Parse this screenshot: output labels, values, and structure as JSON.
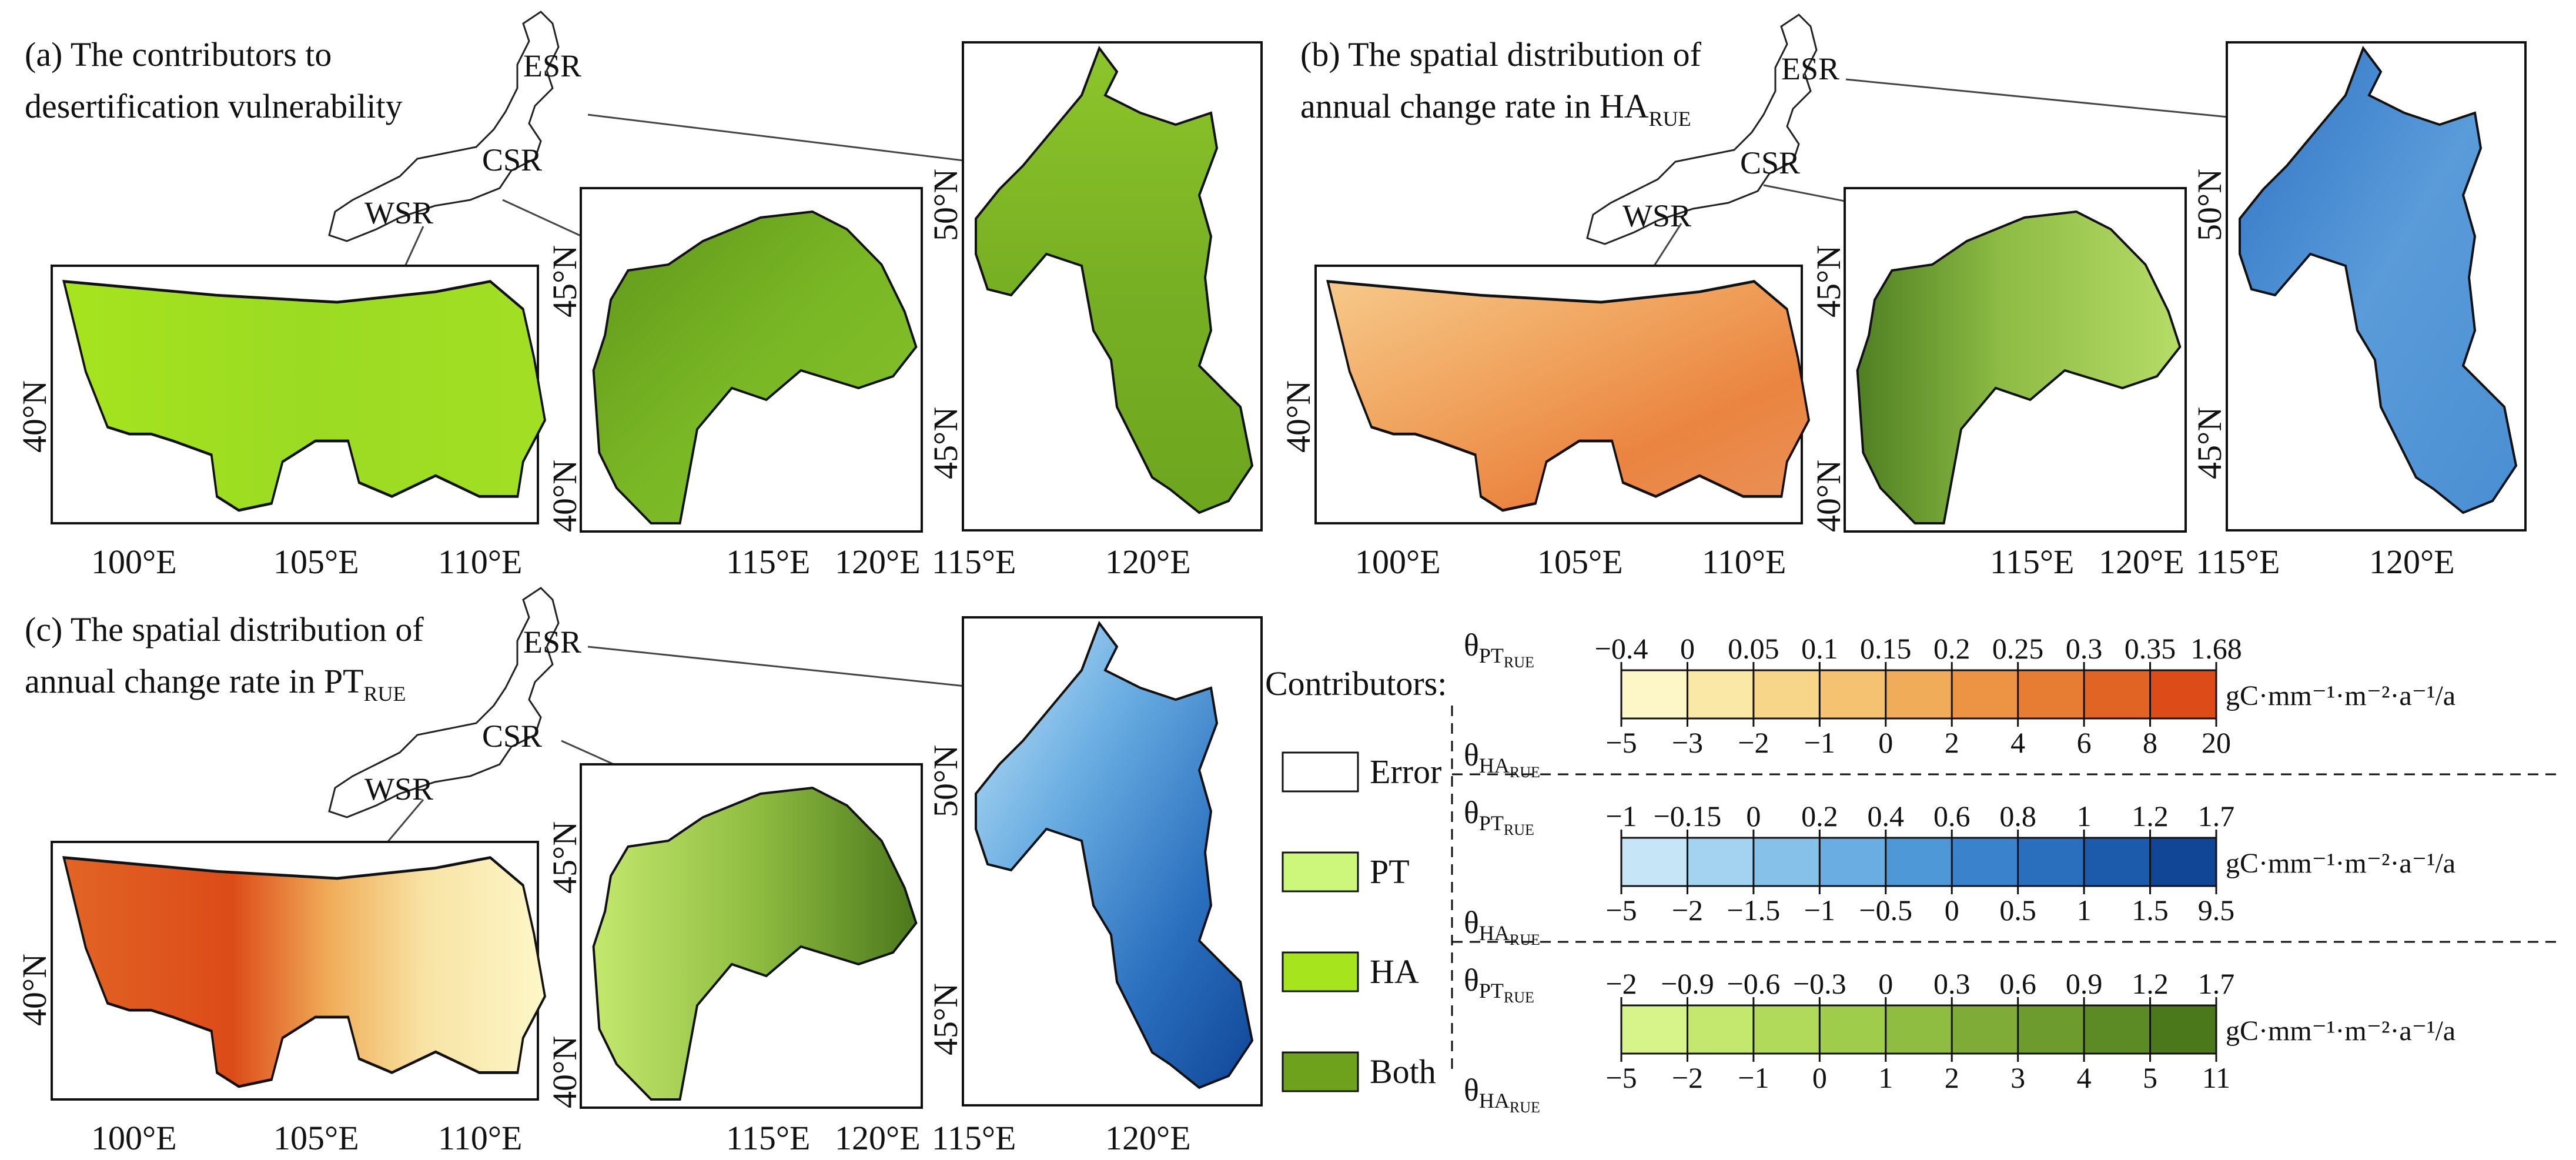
{
  "panels": {
    "a": {
      "title_line1": "(a) The contributors to",
      "title_line2": "desertification vulnerability"
    },
    "b": {
      "title_line1": "(b) The spatial distribution of",
      "title_line2": "annual change rate in HA",
      "title_sub": "RUE"
    },
    "c": {
      "title_line1": "(c) The spatial distribution of",
      "title_line2": "annual change rate in PT",
      "title_sub": "RUE"
    }
  },
  "regions": {
    "esr": "ESR",
    "csr": "CSR",
    "wsr": "WSR"
  },
  "axis_labels": {
    "wsr_x": [
      "100°E",
      "105°E",
      "110°E"
    ],
    "wsr_y": [
      "40°N"
    ],
    "csr_x": [
      "115°E",
      "120°E"
    ],
    "csr_y": [
      "45°N",
      "40°N"
    ],
    "esr_x": [
      "115°E",
      "120°E"
    ],
    "esr_y": [
      "50°N",
      "45°N"
    ]
  },
  "legend": {
    "title": "Contributors:",
    "items": [
      {
        "label": "Error",
        "color": "#ffffff"
      },
      {
        "label": "PT",
        "color": "#ccf77a"
      },
      {
        "label": "HA",
        "color": "#a6e41e"
      },
      {
        "label": "Both",
        "color": "#6ea21c"
      }
    ]
  },
  "colorbars": [
    {
      "pt_labels": [
        "−0.4",
        "0",
        "0.05",
        "0.1",
        "0.15",
        "0.2",
        "0.25",
        "0.3",
        "0.35",
        "1.68"
      ],
      "ha_labels": [
        "−5",
        "−3",
        "−2",
        "−1",
        "0",
        "2",
        "4",
        "6",
        "8",
        "20"
      ],
      "colors": [
        "#fdf7c8",
        "#fae8a6",
        "#f7d68a",
        "#f4c270",
        "#f0ac58",
        "#ec9444",
        "#e77c33",
        "#e26425",
        "#dc4b18"
      ],
      "unit": "gC·mm⁻¹·m⁻²·a⁻¹/a"
    },
    {
      "pt_labels": [
        "−1",
        "−0.15",
        "0",
        "0.2",
        "0.4",
        "0.6",
        "0.8",
        "1",
        "1.2",
        "1.7"
      ],
      "ha_labels": [
        "−5",
        "−2",
        "−1.5",
        "−1",
        "−0.5",
        "0",
        "0.5",
        "1",
        "1.5",
        "9.5"
      ],
      "colors": [
        "#c6e6f8",
        "#a4d3f1",
        "#86c1ea",
        "#69ade2",
        "#4f98d8",
        "#3a83cc",
        "#2a6fbe",
        "#1c5aac",
        "#114697"
      ],
      "unit": "gC·mm⁻¹·m⁻²·a⁻¹/a"
    },
    {
      "pt_labels": [
        "−2",
        "−0.9",
        "−0.6",
        "−0.3",
        "0",
        "0.3",
        "0.6",
        "0.9",
        "1.2",
        "1.7"
      ],
      "ha_labels": [
        "−5",
        "−2",
        "−1",
        "0",
        "1",
        "2",
        "3",
        "4",
        "5",
        "11"
      ],
      "colors": [
        "#d7f48a",
        "#c4e86e",
        "#b1da5a",
        "#a0cc4c",
        "#8fbd41",
        "#7eac37",
        "#6d9b2d",
        "#5c8a24",
        "#4c781c"
      ],
      "unit": "gC·mm⁻¹·m⁻²·a⁻¹/a"
    }
  ],
  "theta_symbol": "θ",
  "theta_subs": {
    "pt": "PT",
    "ha": "HA",
    "rue": "RUE"
  },
  "map_colors": {
    "a_wsr": "#a6e41e",
    "a_csr": "#6ea21c",
    "a_esr": "#7bb323",
    "b_wsr": "#ee9a52",
    "b_csr": "#a6d05a",
    "b_esr": "#4e92d6",
    "c_wsr": "#e9773a",
    "c_csr": "#8fbd41",
    "c_esr": "#3a83cc"
  }
}
